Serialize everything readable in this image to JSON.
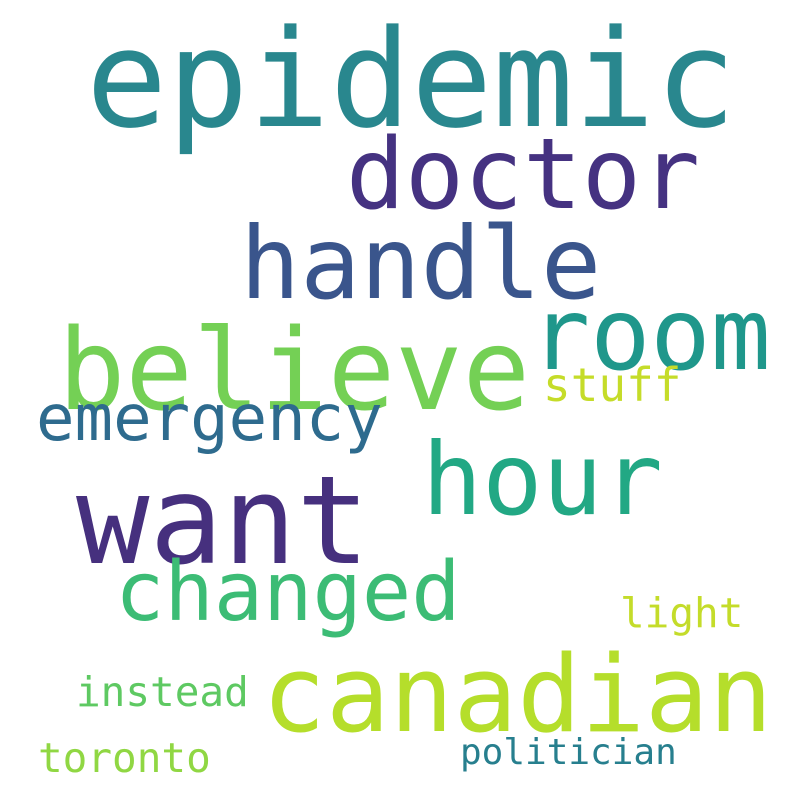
{
  "words": [
    {
      "text": "epidemic",
      "color": "#29878e"
    },
    {
      "text": "doctor",
      "color": "#453281"
    },
    {
      "text": "handle",
      "color": "#3a558c"
    },
    {
      "text": "room",
      "color": "#1f978b"
    },
    {
      "text": "believe",
      "color": "#74d055"
    },
    {
      "text": "stuff",
      "color": "#c5dc29"
    },
    {
      "text": "emergency",
      "color": "#2e6b8e"
    },
    {
      "text": "hour",
      "color": "#22a884"
    },
    {
      "text": "want",
      "color": "#46307e"
    },
    {
      "text": "changed",
      "color": "#3cbc75"
    },
    {
      "text": "light",
      "color": "#c4dc2a"
    },
    {
      "text": "canadian",
      "color": "#b5de2b"
    },
    {
      "text": "instead",
      "color": "#5ec962"
    },
    {
      "text": "toronto",
      "color": "#90d743"
    },
    {
      "text": "politician",
      "color": "#277f8e"
    }
  ]
}
